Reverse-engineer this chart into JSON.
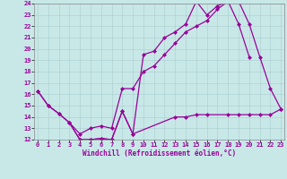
{
  "xlabel": "Windchill (Refroidissement éolien,°C)",
  "xlim_min": 0,
  "xlim_max": 23,
  "ylim_min": 12,
  "ylim_max": 24,
  "xticks": [
    0,
    1,
    2,
    3,
    4,
    5,
    6,
    7,
    8,
    9,
    10,
    11,
    12,
    13,
    14,
    15,
    16,
    17,
    18,
    19,
    20,
    21,
    22,
    23
  ],
  "yticks": [
    12,
    13,
    14,
    15,
    16,
    17,
    18,
    19,
    20,
    21,
    22,
    23,
    24
  ],
  "bg_color": "#c8e8e8",
  "line_color": "#990099",
  "grid_color": "#aacccc",
  "marker": "D",
  "markersize": 2.5,
  "linewidth": 0.9,
  "curve1_x": [
    0,
    1,
    2,
    3,
    4,
    5,
    6,
    7,
    8,
    9,
    10,
    11,
    12,
    13,
    14,
    15,
    16,
    17,
    18,
    19,
    20
  ],
  "curve1_y": [
    16.3,
    15.0,
    14.3,
    13.5,
    12.0,
    12.0,
    12.1,
    12.0,
    14.5,
    12.5,
    19.5,
    19.8,
    21.0,
    21.5,
    22.2,
    24.2,
    23.0,
    23.8,
    24.2,
    22.2,
    19.3
  ],
  "curve2_x": [
    0,
    1,
    2,
    3,
    4,
    5,
    6,
    7,
    8,
    9,
    10,
    11,
    12,
    13,
    14,
    15,
    16,
    17,
    18,
    19,
    20,
    21,
    22,
    23
  ],
  "curve2_y": [
    16.3,
    15.0,
    14.3,
    13.5,
    12.5,
    13.0,
    13.2,
    13.0,
    16.5,
    16.5,
    18.0,
    18.5,
    19.5,
    20.5,
    21.5,
    22.0,
    22.5,
    23.5,
    24.2,
    24.2,
    22.2,
    19.3,
    16.5,
    14.7
  ],
  "curve3_x": [
    3,
    4,
    5,
    6,
    7,
    8,
    9,
    13,
    14,
    15,
    16,
    18,
    19,
    20,
    21,
    22,
    23
  ],
  "curve3_y": [
    13.5,
    12.0,
    12.0,
    12.1,
    12.0,
    14.5,
    12.5,
    14.0,
    14.0,
    14.2,
    14.2,
    14.2,
    14.2,
    14.2,
    14.2,
    14.2,
    14.7
  ]
}
